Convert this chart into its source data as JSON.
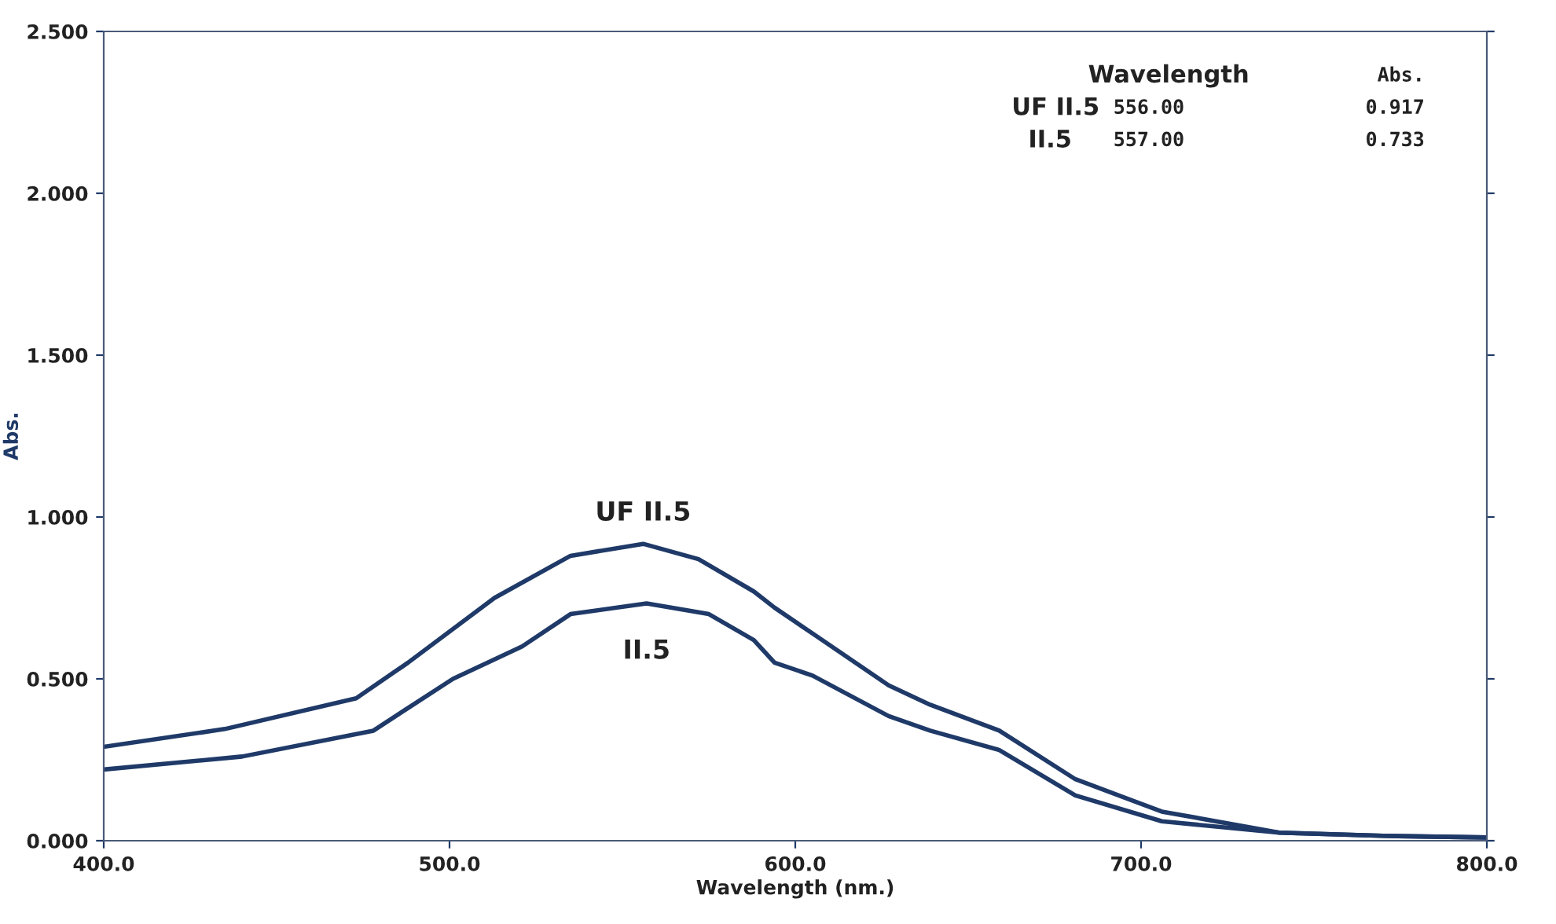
{
  "chart_data": {
    "type": "line",
    "xlabel": "Wavelength (nm.)",
    "ylabel": "Abs.",
    "xlim": [
      400,
      800
    ],
    "ylim": [
      0,
      2.5
    ],
    "xticks": [
      {
        "value": 400,
        "label": "400.0"
      },
      {
        "value": 500,
        "label": "500.0"
      },
      {
        "value": 600,
        "label": "600.0"
      },
      {
        "value": 700,
        "label": "700.0"
      },
      {
        "value": 800,
        "label": "800.0"
      }
    ],
    "yticks": [
      {
        "value": 0,
        "label": "0.000"
      },
      {
        "value": 0.5,
        "label": "0.500"
      },
      {
        "value": 1.0,
        "label": "1.000"
      },
      {
        "value": 1.5,
        "label": "1.500"
      },
      {
        "value": 2.0,
        "label": "2.000"
      },
      {
        "value": 2.5,
        "label": "2.500"
      }
    ],
    "grid": false,
    "legend": false,
    "marker": "none",
    "line_style": "solid",
    "series": [
      {
        "color": "#1f3a68",
        "x": [
          400,
          435,
          473,
          488,
          513,
          535,
          556,
          572,
          588,
          594,
          605,
          627,
          639,
          659,
          681,
          706,
          740,
          770,
          800
        ],
        "values": [
          0.29,
          0.345,
          0.44,
          0.55,
          0.75,
          0.88,
          0.917,
          0.87,
          0.77,
          0.72,
          0.64,
          0.48,
          0.42,
          0.34,
          0.19,
          0.09,
          0.025,
          0.015,
          0.01
        ]
      },
      {
        "color": "#1f3a68",
        "x": [
          400,
          440,
          478,
          488,
          501,
          521,
          535,
          557,
          575,
          588,
          594,
          605,
          627,
          639,
          659,
          681,
          706,
          740,
          770,
          800
        ],
        "values": [
          0.22,
          0.26,
          0.34,
          0.41,
          0.5,
          0.6,
          0.7,
          0.733,
          0.7,
          0.62,
          0.55,
          0.51,
          0.385,
          0.34,
          0.28,
          0.14,
          0.06,
          0.025,
          0.015,
          0.01
        ]
      }
    ],
    "annotations": [
      {
        "text": "UF II.5",
        "x": 556,
        "y": 0.917
      },
      {
        "text": "II.5",
        "x": 557,
        "y": 0.733
      },
      "Wavelength",
      "Abs.",
      "UF II.5",
      "556.00",
      "0.917",
      "II.5",
      "557.00",
      "0.733"
    ]
  }
}
